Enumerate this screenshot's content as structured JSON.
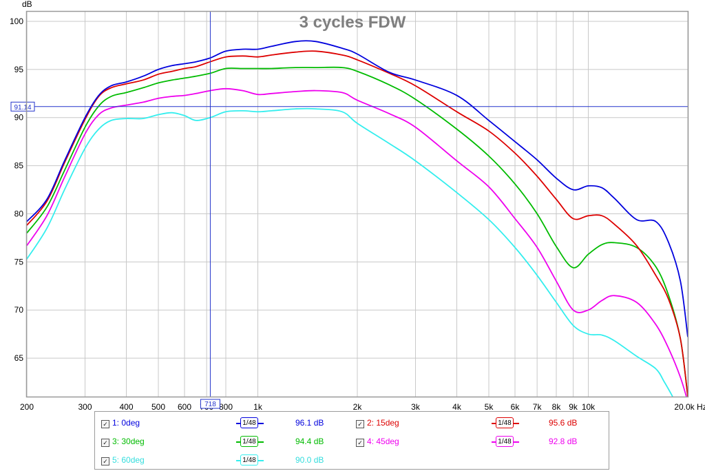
{
  "chart_data": {
    "type": "line",
    "title": "3 cycles FDW",
    "ylabel": "dB",
    "xunit": "Hz",
    "xscale": "log",
    "xlim": [
      200,
      20000
    ],
    "ylim": [
      61,
      101
    ],
    "grid": true,
    "xticks": [
      {
        "v": 200,
        "label": "200"
      },
      {
        "v": 300,
        "label": "300"
      },
      {
        "v": 400,
        "label": "400"
      },
      {
        "v": 500,
        "label": "500"
      },
      {
        "v": 600,
        "label": "600"
      },
      {
        "v": 700,
        "label": "700"
      },
      {
        "v": 800,
        "label": "800"
      },
      {
        "v": 1000,
        "label": "1k"
      },
      {
        "v": 2000,
        "label": "2k"
      },
      {
        "v": 3000,
        "label": "3k"
      },
      {
        "v": 4000,
        "label": "4k"
      },
      {
        "v": 5000,
        "label": "5k"
      },
      {
        "v": 6000,
        "label": "6k"
      },
      {
        "v": 7000,
        "label": "7k"
      },
      {
        "v": 8000,
        "label": "8k"
      },
      {
        "v": 9000,
        "label": "9k"
      },
      {
        "v": 10000,
        "label": "10k"
      },
      {
        "v": 20000,
        "label": "20.0k Hz"
      }
    ],
    "yticks": [
      65,
      70,
      75,
      80,
      85,
      90,
      95,
      100
    ],
    "cursor": {
      "x": 718,
      "x_label": "718",
      "y": 91.14,
      "y_label": "91.14"
    },
    "series": [
      {
        "name": "1: 0deg",
        "color": "#0000dd",
        "smoothing": "1/48",
        "cursor_value": "96.1 dB",
        "x": [
          200,
          230,
          260,
          300,
          330,
          360,
          400,
          450,
          500,
          550,
          600,
          650,
          718,
          800,
          900,
          1000,
          1100,
          1300,
          1500,
          1800,
          2000,
          2500,
          3000,
          4000,
          5000,
          6000,
          7000,
          8000,
          9000,
          10000,
          11000,
          12000,
          14000,
          16000,
          17500,
          19000,
          20000
        ],
        "y": [
          79.2,
          81.5,
          85.5,
          90.0,
          92.3,
          93.3,
          93.7,
          94.3,
          95.0,
          95.4,
          95.6,
          95.8,
          96.2,
          96.9,
          97.1,
          97.1,
          97.4,
          97.9,
          97.9,
          97.2,
          96.6,
          94.7,
          93.9,
          92.3,
          89.7,
          87.5,
          85.6,
          83.7,
          82.5,
          82.9,
          82.7,
          81.6,
          79.4,
          79.2,
          77.0,
          73.0,
          67.2
        ]
      },
      {
        "name": "2: 15deg",
        "color": "#dd0000",
        "smoothing": "1/48",
        "cursor_value": "95.6 dB",
        "x": [
          200,
          230,
          260,
          300,
          330,
          360,
          400,
          450,
          500,
          550,
          600,
          650,
          718,
          800,
          900,
          1000,
          1100,
          1300,
          1500,
          1800,
          2000,
          2500,
          3000,
          4000,
          5000,
          6000,
          7000,
          8000,
          9000,
          10000,
          11000,
          12000,
          14000,
          16000,
          17500,
          19000,
          20000
        ],
        "y": [
          78.8,
          81.3,
          85.3,
          89.8,
          92.2,
          93.1,
          93.5,
          93.9,
          94.5,
          94.8,
          95.1,
          95.3,
          95.8,
          96.3,
          96.4,
          96.3,
          96.5,
          96.8,
          96.9,
          96.5,
          96.0,
          94.6,
          93.3,
          90.6,
          88.6,
          86.3,
          83.9,
          81.5,
          79.5,
          79.8,
          79.8,
          78.9,
          76.7,
          73.6,
          71.1,
          67.0,
          61.0
        ]
      },
      {
        "name": "3: 30deg",
        "color": "#00bb00",
        "smoothing": "1/48",
        "cursor_value": "94.4 dB",
        "x": [
          200,
          230,
          260,
          300,
          330,
          360,
          400,
          450,
          500,
          550,
          600,
          650,
          718,
          800,
          900,
          1000,
          1100,
          1300,
          1500,
          1800,
          2000,
          2500,
          3000,
          4000,
          5000,
          6000,
          7000,
          8000,
          9000,
          10000,
          11000,
          12000,
          14000,
          16000,
          17500,
          19000,
          20000
        ],
        "y": [
          78.0,
          80.7,
          84.5,
          89.0,
          91.2,
          92.2,
          92.6,
          93.1,
          93.6,
          93.9,
          94.1,
          94.3,
          94.6,
          95.1,
          95.1,
          95.1,
          95.1,
          95.2,
          95.2,
          95.2,
          94.8,
          93.4,
          91.9,
          88.8,
          86.0,
          83.1,
          80.0,
          76.6,
          74.4,
          75.8,
          76.8,
          77.0,
          76.5,
          74.5,
          71.5,
          67.0,
          61.0
        ]
      },
      {
        "name": "4: 45deg",
        "color": "#ee00ee",
        "smoothing": "1/48",
        "cursor_value": "92.8 dB",
        "x": [
          200,
          230,
          260,
          300,
          330,
          360,
          400,
          450,
          500,
          550,
          600,
          650,
          718,
          800,
          900,
          1000,
          1100,
          1300,
          1500,
          1800,
          2000,
          2500,
          3000,
          4000,
          5000,
          6000,
          7000,
          8000,
          9000,
          10000,
          11000,
          12000,
          14000,
          16000,
          17500,
          19000,
          20000
        ],
        "y": [
          76.7,
          79.8,
          83.8,
          88.3,
          90.3,
          91.0,
          91.3,
          91.6,
          92.0,
          92.2,
          92.3,
          92.5,
          92.8,
          93.0,
          92.8,
          92.4,
          92.5,
          92.7,
          92.8,
          92.6,
          91.8,
          90.4,
          89.0,
          85.5,
          82.8,
          79.5,
          76.5,
          73.0,
          70.0,
          70.0,
          71.0,
          71.5,
          70.8,
          68.5,
          66.0,
          63.0,
          60.5
        ]
      },
      {
        "name": "5: 60deg",
        "color": "#33eeee",
        "smoothing": "1/48",
        "cursor_value": "90.0 dB",
        "x": [
          200,
          230,
          260,
          300,
          330,
          360,
          400,
          450,
          500,
          550,
          600,
          650,
          718,
          800,
          900,
          1000,
          1100,
          1300,
          1500,
          1800,
          2000,
          2500,
          3000,
          4000,
          5000,
          6000,
          7000,
          8000,
          9000,
          10000,
          11000,
          12000,
          14000,
          16000,
          17000,
          18000
        ],
        "y": [
          75.3,
          78.5,
          82.5,
          86.8,
          88.8,
          89.7,
          89.9,
          89.9,
          90.3,
          90.5,
          90.2,
          89.7,
          90.0,
          90.6,
          90.7,
          90.6,
          90.7,
          90.9,
          90.9,
          90.6,
          89.4,
          87.3,
          85.5,
          82.2,
          79.4,
          76.5,
          73.6,
          70.8,
          68.4,
          67.5,
          67.4,
          66.8,
          65.2,
          63.9,
          62.5,
          61.0
        ]
      }
    ]
  }
}
